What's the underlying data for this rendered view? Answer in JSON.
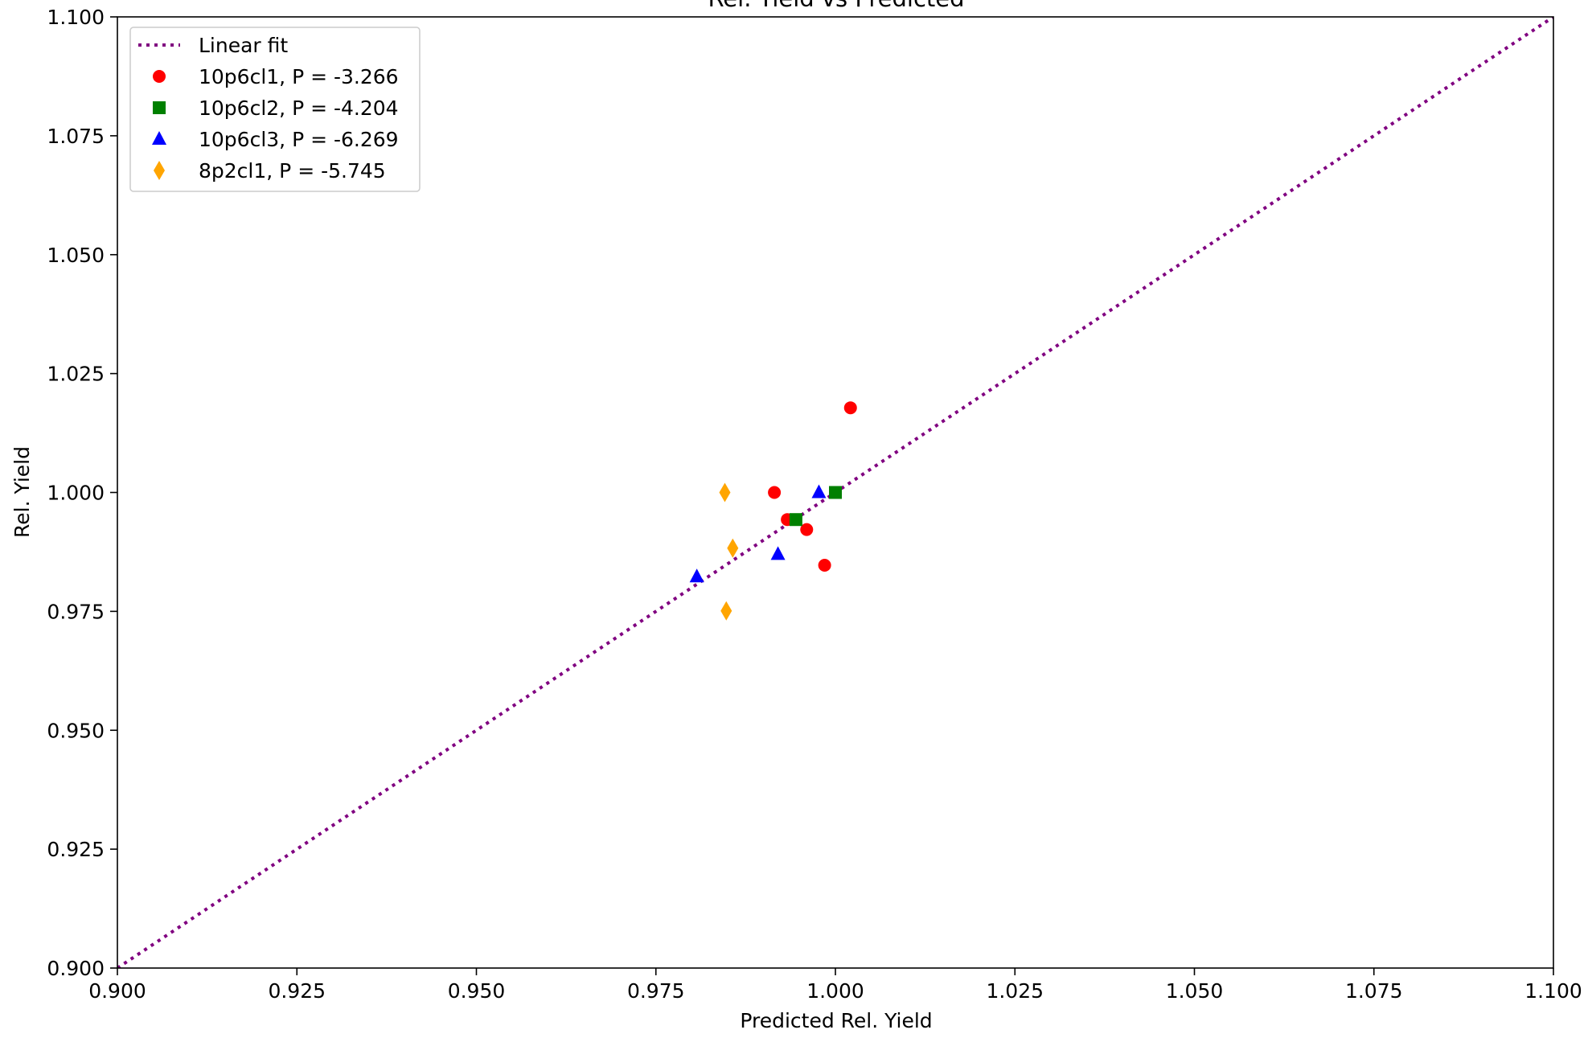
{
  "chart_data": {
    "type": "scatter",
    "title": "Rel. Yield vs Predicted",
    "xlabel": "Predicted Rel. Yield",
    "ylabel": "Rel. Yield",
    "xlim": [
      0.9,
      1.1
    ],
    "ylim": [
      0.9,
      1.1
    ],
    "xticks": [
      0.9,
      0.925,
      0.95,
      0.975,
      1.0,
      1.025,
      1.05,
      1.075,
      1.1
    ],
    "yticks": [
      0.9,
      0.925,
      0.95,
      0.975,
      1.0,
      1.025,
      1.05,
      1.075,
      1.1
    ],
    "xtick_labels": [
      "0.900",
      "0.925",
      "0.950",
      "0.975",
      "1.000",
      "1.025",
      "1.050",
      "1.075",
      "1.100"
    ],
    "ytick_labels": [
      "0.900",
      "0.925",
      "0.950",
      "0.975",
      "1.000",
      "1.025",
      "1.050",
      "1.075",
      "1.100"
    ],
    "grid": false,
    "legend_position": "top-left",
    "fit_line": {
      "name": "Linear fit",
      "style": "dotted",
      "color": "#800080",
      "x": [
        0.9,
        1.1
      ],
      "y": [
        0.9,
        1.1
      ]
    },
    "series": [
      {
        "name": "10p6cl1, P = -3.266",
        "marker": "circle",
        "color": "#ff0000",
        "points": [
          [
            0.9915,
            1.0
          ],
          [
            0.9933,
            0.9943
          ],
          [
            0.996,
            0.9922
          ],
          [
            0.9985,
            0.9847
          ],
          [
            1.0021,
            1.0178
          ]
        ]
      },
      {
        "name": "10p6cl2, P = -4.204",
        "marker": "square",
        "color": "#008000",
        "points": [
          [
            0.9945,
            0.9943
          ],
          [
            1.0,
            1.0
          ]
        ]
      },
      {
        "name": "10p6cl3, P = -6.269",
        "marker": "triangle",
        "color": "#0000ff",
        "points": [
          [
            0.9807,
            0.9823
          ],
          [
            0.992,
            0.987
          ],
          [
            0.9977,
            1.0
          ]
        ]
      },
      {
        "name": "8p2cl1, P = -5.745",
        "marker": "diamond",
        "color": "#ffa500",
        "points": [
          [
            0.9846,
            1.0
          ],
          [
            0.9857,
            0.9883
          ],
          [
            0.9848,
            0.9751
          ]
        ]
      }
    ]
  }
}
